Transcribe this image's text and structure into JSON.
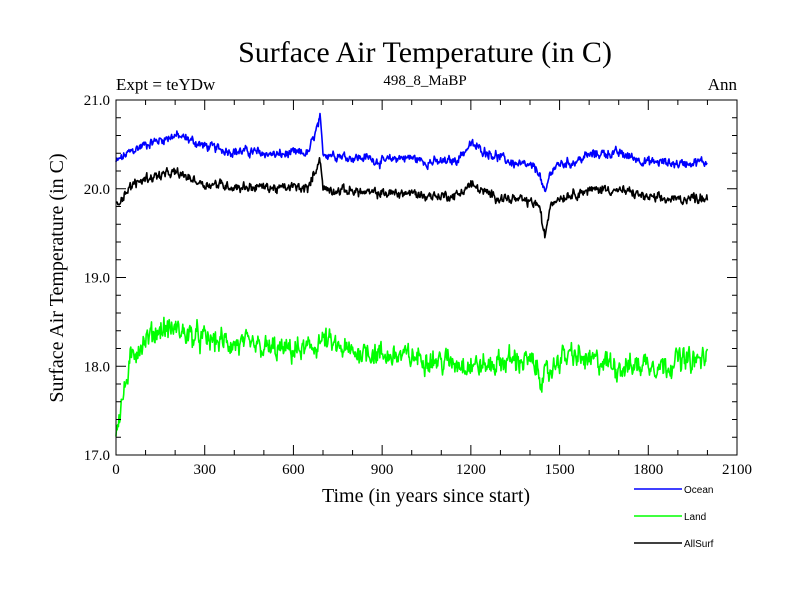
{
  "chart_data": {
    "type": "line",
    "title": "Surface Air Temperature (in C)",
    "subtitle_left": "Expt = teYDw",
    "subtitle_center": "498_8_MaBP",
    "subtitle_right": "Ann",
    "xlabel": "Time (in years since start)",
    "ylabel": "Surface Air Temperature (in C)",
    "xlim": [
      0,
      2100
    ],
    "ylim": [
      17.0,
      21.0
    ],
    "xticks": [
      0,
      300,
      600,
      900,
      1200,
      1500,
      1800,
      2100
    ],
    "xtick_labels": [
      "0",
      "300",
      "600",
      "900",
      "1200",
      "1500",
      "1800",
      "2100"
    ],
    "yticks": [
      17.0,
      18.0,
      19.0,
      20.0,
      21.0
    ],
    "ytick_labels": [
      "17.0",
      "18.0",
      "19.0",
      "20.0",
      "21.0"
    ],
    "x_minor_step": 100,
    "y_minor_step": 0.2,
    "series": [
      {
        "name": "Ocean",
        "color": "#0000ff",
        "x": [
          0,
          50,
          100,
          150,
          200,
          250,
          300,
          350,
          400,
          450,
          500,
          550,
          600,
          650,
          690,
          700,
          750,
          800,
          850,
          900,
          950,
          1000,
          1050,
          1100,
          1150,
          1200,
          1250,
          1300,
          1350,
          1400,
          1430,
          1450,
          1470,
          1500,
          1550,
          1600,
          1650,
          1700,
          1750,
          1800,
          1850,
          1900,
          1950,
          2000
        ],
        "values": [
          20.3,
          20.42,
          20.5,
          20.55,
          20.6,
          20.55,
          20.48,
          20.45,
          20.42,
          20.42,
          20.4,
          20.38,
          20.4,
          20.4,
          20.78,
          20.4,
          20.38,
          20.35,
          20.35,
          20.3,
          20.35,
          20.35,
          20.3,
          20.3,
          20.32,
          20.5,
          20.42,
          20.35,
          20.28,
          20.25,
          20.2,
          19.92,
          20.2,
          20.28,
          20.3,
          20.38,
          20.4,
          20.4,
          20.35,
          20.3,
          20.3,
          20.28,
          20.3,
          20.3
        ],
        "noise": 0.08
      },
      {
        "name": "Land",
        "color": "#00ff00",
        "x": [
          0,
          10,
          20,
          30,
          40,
          50,
          70,
          100,
          150,
          200,
          250,
          300,
          350,
          400,
          450,
          500,
          550,
          600,
          650,
          700,
          750,
          800,
          850,
          900,
          950,
          1000,
          1050,
          1100,
          1150,
          1200,
          1250,
          1300,
          1350,
          1400,
          1450,
          1500,
          1550,
          1600,
          1650,
          1700,
          1750,
          1800,
          1850,
          1900,
          1950,
          2000
        ],
        "values": [
          17.3,
          17.45,
          17.6,
          17.75,
          17.9,
          18.05,
          18.2,
          18.3,
          18.42,
          18.42,
          18.35,
          18.3,
          18.28,
          18.25,
          18.22,
          18.2,
          18.18,
          18.18,
          18.18,
          18.3,
          18.2,
          18.15,
          18.18,
          18.12,
          18.12,
          18.1,
          18.1,
          18.05,
          18.05,
          18.02,
          18.0,
          18.05,
          18.08,
          18.05,
          17.85,
          18.1,
          18.12,
          18.05,
          18.05,
          18.0,
          18.0,
          18.05,
          18.0,
          18.08,
          18.05,
          18.1
        ],
        "noise": 0.2
      },
      {
        "name": "AllSurf",
        "color": "#000000",
        "x": [
          0,
          30,
          60,
          100,
          150,
          200,
          250,
          300,
          350,
          400,
          450,
          500,
          550,
          600,
          650,
          690,
          700,
          750,
          800,
          850,
          900,
          950,
          1000,
          1050,
          1100,
          1150,
          1200,
          1250,
          1300,
          1350,
          1400,
          1430,
          1450,
          1470,
          1500,
          1550,
          1600,
          1650,
          1700,
          1750,
          1800,
          1850,
          1900,
          1950,
          2000
        ],
        "values": [
          19.82,
          19.95,
          20.05,
          20.12,
          20.15,
          20.18,
          20.12,
          20.05,
          20.05,
          20.02,
          20.02,
          20.02,
          20.0,
          20.02,
          20.0,
          20.35,
          20.0,
          19.98,
          19.98,
          19.95,
          19.95,
          19.95,
          19.95,
          19.92,
          19.92,
          19.92,
          20.05,
          19.95,
          19.9,
          19.88,
          19.85,
          19.82,
          19.45,
          19.85,
          19.9,
          19.95,
          19.98,
          20.0,
          19.98,
          19.95,
          19.9,
          19.88,
          19.88,
          19.9,
          19.9
        ],
        "noise": 0.08
      }
    ],
    "legend_position": "bottom-right"
  }
}
